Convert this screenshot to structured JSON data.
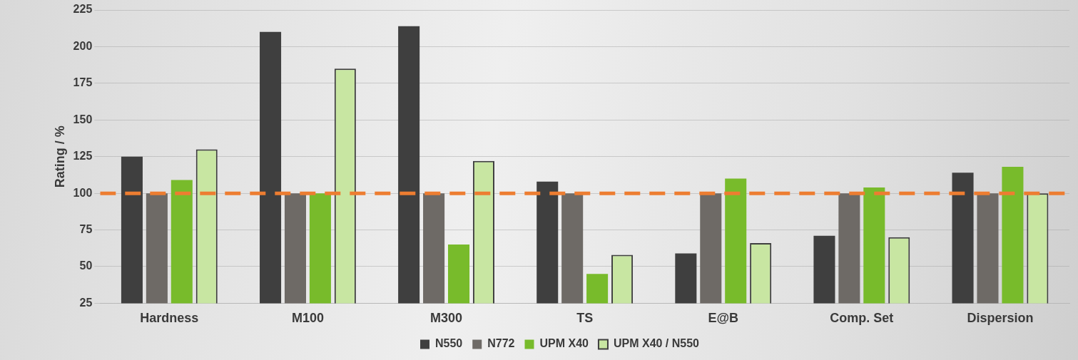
{
  "chart_data": {
    "type": "bar",
    "y_label": "Rating / %",
    "categories": [
      "Hardness",
      "M100",
      "M300",
      "TS",
      "E@B",
      "Comp. Set",
      "Dispersion"
    ],
    "series": [
      {
        "name": "N550",
        "color": "#3f3f3f",
        "values": [
          125,
          210,
          214,
          108,
          59,
          71,
          114
        ]
      },
      {
        "name": "N772",
        "color": "#6e6a66",
        "values": [
          100,
          100,
          100,
          100,
          100,
          100,
          100
        ]
      },
      {
        "name": "UPM X40",
        "color": "#78bb2b",
        "values": [
          109,
          100,
          65,
          45,
          110,
          104,
          118
        ]
      },
      {
        "name": "UPM X40 / N550",
        "color": "#c8e6a2",
        "values": [
          130,
          185,
          122,
          58,
          66,
          70,
          100
        ]
      }
    ],
    "reference_line": 100,
    "reference_color": "#ed7d31",
    "ylim": [
      25,
      225
    ],
    "yticks": [
      25,
      50,
      75,
      100,
      125,
      150,
      175,
      200,
      225
    ],
    "grid": true,
    "legend": "bottom"
  }
}
